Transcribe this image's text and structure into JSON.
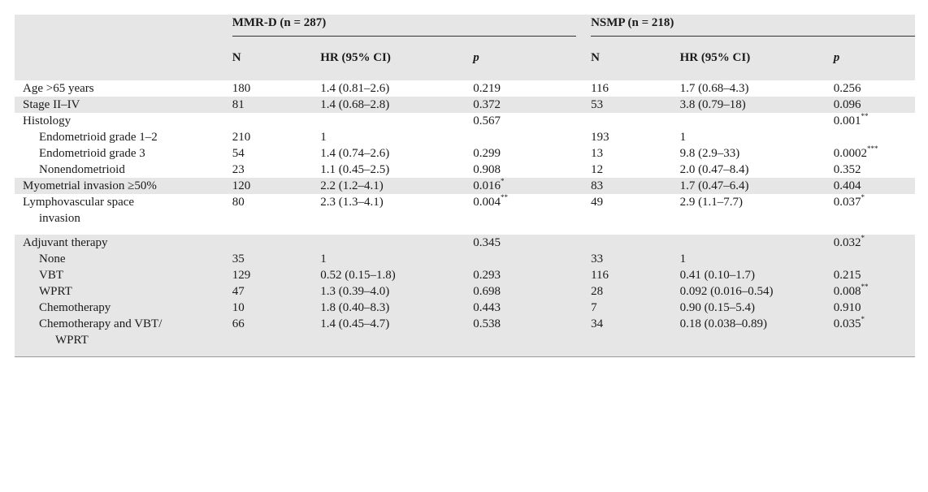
{
  "header": {
    "group_mmr": "MMR-D (n = 287)",
    "group_nsmp": "NSMP (n = 218)",
    "col_n": "N",
    "col_hr": "HR (95% CI)",
    "col_p": "p"
  },
  "rows": [
    {
      "label": "Age >65 years",
      "n1": "180",
      "hr1": "1.4 (0.81–2.6)",
      "p1": "0.219",
      "s1": "",
      "n2": "116",
      "hr2": "1.7 (0.68–4.3)",
      "p2": "0.256",
      "s2": ""
    },
    {
      "label": "Stage II–IV",
      "n1": "81",
      "hr1": "1.4 (0.68–2.8)",
      "p1": "0.372",
      "s1": "",
      "n2": "53",
      "hr2": "3.8 (0.79–18)",
      "p2": "0.096",
      "s2": ""
    },
    {
      "label": "Histology",
      "n1": "",
      "hr1": "",
      "p1": "0.567",
      "s1": "",
      "n2": "",
      "hr2": "",
      "p2": "0.001",
      "s2": "**"
    },
    {
      "label": "Endometrioid grade 1–2",
      "n1": "210",
      "hr1": "1",
      "p1": "",
      "s1": "",
      "n2": "193",
      "hr2": "1",
      "p2": "",
      "s2": ""
    },
    {
      "label": "Endometrioid grade 3",
      "n1": "54",
      "hr1": "1.4 (0.74–2.6)",
      "p1": "0.299",
      "s1": "",
      "n2": "13",
      "hr2": "9.8 (2.9–33)",
      "p2": "0.0002",
      "s2": "***"
    },
    {
      "label": "Nonendometrioid",
      "n1": "23",
      "hr1": "1.1 (0.45–2.5)",
      "p1": "0.908",
      "s1": "",
      "n2": "12",
      "hr2": "2.0 (0.47–8.4)",
      "p2": "0.352",
      "s2": ""
    },
    {
      "label": "Myometrial invasion ≥50%",
      "n1": "120",
      "hr1": "2.2 (1.2–4.1)",
      "p1": "0.016",
      "s1": "*",
      "n2": "83",
      "hr2": "1.7 (0.47–6.4)",
      "p2": "0.404",
      "s2": ""
    },
    {
      "label": "Lymphovascular space",
      "label2": "invasion",
      "n1": "80",
      "hr1": "2.3 (1.3–4.1)",
      "p1": "0.004",
      "s1": "**",
      "n2": "49",
      "hr2": "2.9 (1.1–7.7)",
      "p2": "0.037",
      "s2": "*"
    },
    {
      "label": "Adjuvant therapy",
      "n1": "",
      "hr1": "",
      "p1": "0.345",
      "s1": "",
      "n2": "",
      "hr2": "",
      "p2": "0.032",
      "s2": "*"
    },
    {
      "label": "None",
      "n1": "35",
      "hr1": "1",
      "p1": "",
      "s1": "",
      "n2": "33",
      "hr2": "1",
      "p2": "",
      "s2": ""
    },
    {
      "label": "VBT",
      "n1": "129",
      "hr1": "0.52 (0.15–1.8)",
      "p1": "0.293",
      "s1": "",
      "n2": "116",
      "hr2": "0.41 (0.10–1.7)",
      "p2": "0.215",
      "s2": ""
    },
    {
      "label": "WPRT",
      "n1": "47",
      "hr1": "1.3 (0.39–4.0)",
      "p1": "0.698",
      "s1": "",
      "n2": "28",
      "hr2": "0.092 (0.016–0.54)",
      "p2": "0.008",
      "s2": "**"
    },
    {
      "label": "Chemotherapy",
      "n1": "10",
      "hr1": "1.8 (0.40–8.3)",
      "p1": "0.443",
      "s1": "",
      "n2": "7",
      "hr2": "0.90 (0.15–5.4)",
      "p2": "0.910",
      "s2": ""
    },
    {
      "label": "Chemotherapy and VBT/",
      "label2": "WPRT",
      "n1": "66",
      "hr1": "1.4 (0.45–4.7)",
      "p1": "0.538",
      "s1": "",
      "n2": "34",
      "hr2": "0.18 (0.038–0.89)",
      "p2": "0.035",
      "s2": "*"
    }
  ]
}
